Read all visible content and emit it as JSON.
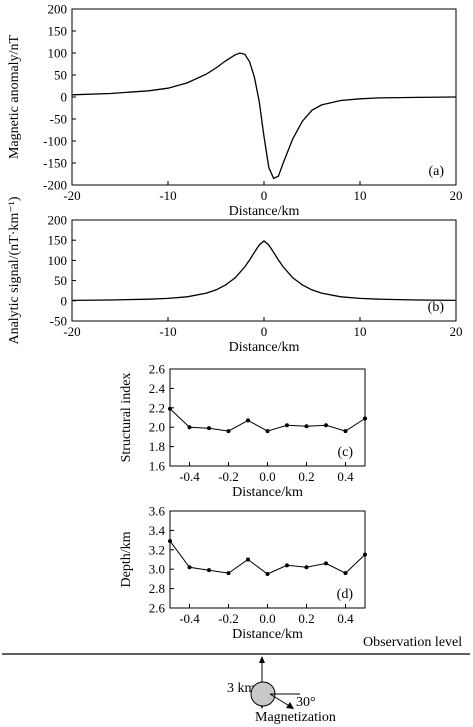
{
  "chart_data": [
    {
      "type": "line",
      "panel_label": "(a)",
      "xlabel": "Distance/km",
      "ylabel": "Magnetic anomaly/nT",
      "xlim": [
        -20,
        20
      ],
      "ylim": [
        -200,
        200
      ],
      "xticks": [
        -20,
        -10,
        0,
        10,
        20
      ],
      "yticks": [
        -200,
        -150,
        -100,
        -50,
        0,
        50,
        100,
        150,
        200
      ],
      "series": [
        {
          "x": [
            -20,
            -16,
            -12,
            -10,
            -8,
            -6,
            -5,
            -4,
            -3,
            -2.5,
            -2,
            -1.5,
            -1,
            -0.5,
            0,
            0.5,
            1,
            1.5,
            2,
            3,
            4,
            5,
            6,
            8,
            10,
            12,
            16,
            20
          ],
          "y": [
            5,
            8,
            14,
            20,
            32,
            52,
            66,
            82,
            96,
            100,
            97,
            80,
            45,
            -10,
            -90,
            -160,
            -185,
            -180,
            -150,
            -95,
            -55,
            -30,
            -18,
            -8,
            -4,
            -2,
            -1,
            0
          ]
        }
      ]
    },
    {
      "type": "line",
      "panel_label": "(b)",
      "xlabel": "Distance/km",
      "ylabel": "Analytic signal/(nT·km⁻¹)",
      "xlim": [
        -20,
        20
      ],
      "ylim": [
        -50,
        200
      ],
      "xticks": [
        -20,
        -10,
        0,
        10,
        20
      ],
      "yticks": [
        -50,
        0,
        50,
        100,
        150,
        200
      ],
      "series": [
        {
          "x": [
            -20,
            -16,
            -12,
            -10,
            -8,
            -6,
            -5,
            -4,
            -3,
            -2,
            -1.5,
            -1,
            -0.5,
            0,
            0.5,
            1,
            1.5,
            2,
            3,
            4,
            5,
            6,
            8,
            10,
            12,
            16,
            20
          ],
          "y": [
            1,
            2,
            4,
            6,
            10,
            19,
            27,
            39,
            57,
            84,
            101,
            120,
            138,
            148,
            138,
            120,
            101,
            84,
            57,
            39,
            27,
            19,
            10,
            6,
            4,
            2,
            1
          ]
        }
      ]
    },
    {
      "type": "line",
      "panel_label": "(c)",
      "xlabel": "Distance/km",
      "ylabel": "Structural index",
      "xlim": [
        -0.5,
        0.5
      ],
      "ylim": [
        1.6,
        2.6
      ],
      "xticks": [
        -0.4,
        -0.2,
        0.0,
        0.2,
        0.4
      ],
      "xtick_labels": [
        "-0.4",
        "-0.2",
        "0.0",
        "0.2",
        "0.4"
      ],
      "yticks": [
        1.6,
        1.8,
        2.0,
        2.2,
        2.4,
        2.6
      ],
      "ytick_labels": [
        "1.6",
        "1.8",
        "2.0",
        "2.2",
        "2.4",
        "2.6"
      ],
      "series": [
        {
          "x": [
            -0.5,
            -0.4,
            -0.3,
            -0.2,
            -0.1,
            0.0,
            0.1,
            0.2,
            0.3,
            0.4,
            0.5
          ],
          "y": [
            2.19,
            2.0,
            1.99,
            1.96,
            2.07,
            1.96,
            2.02,
            2.01,
            2.02,
            1.96,
            2.09
          ]
        }
      ]
    },
    {
      "type": "line",
      "panel_label": "(d)",
      "xlabel": "Distance/km",
      "ylabel": "Depth/km",
      "xlim": [
        -0.5,
        0.5
      ],
      "ylim": [
        2.6,
        3.6
      ],
      "xticks": [
        -0.4,
        -0.2,
        0.0,
        0.2,
        0.4
      ],
      "xtick_labels": [
        "-0.4",
        "-0.2",
        "0.0",
        "0.2",
        "0.4"
      ],
      "yticks": [
        2.6,
        2.8,
        3.0,
        3.2,
        3.4,
        3.6
      ],
      "ytick_labels": [
        "2.6",
        "2.8",
        "3.0",
        "3.2",
        "3.4",
        "3.6"
      ],
      "series": [
        {
          "x": [
            -0.5,
            -0.4,
            -0.3,
            -0.2,
            -0.1,
            0.0,
            0.1,
            0.2,
            0.3,
            0.4,
            0.5
          ],
          "y": [
            3.29,
            3.02,
            2.99,
            2.96,
            3.1,
            2.95,
            3.04,
            3.02,
            3.06,
            2.96,
            3.15
          ]
        }
      ]
    }
  ],
  "model": {
    "observation_label": "Observation level",
    "depth_label": "3 km",
    "angle_label": "30°",
    "magnetization_label": "Magnetization"
  }
}
